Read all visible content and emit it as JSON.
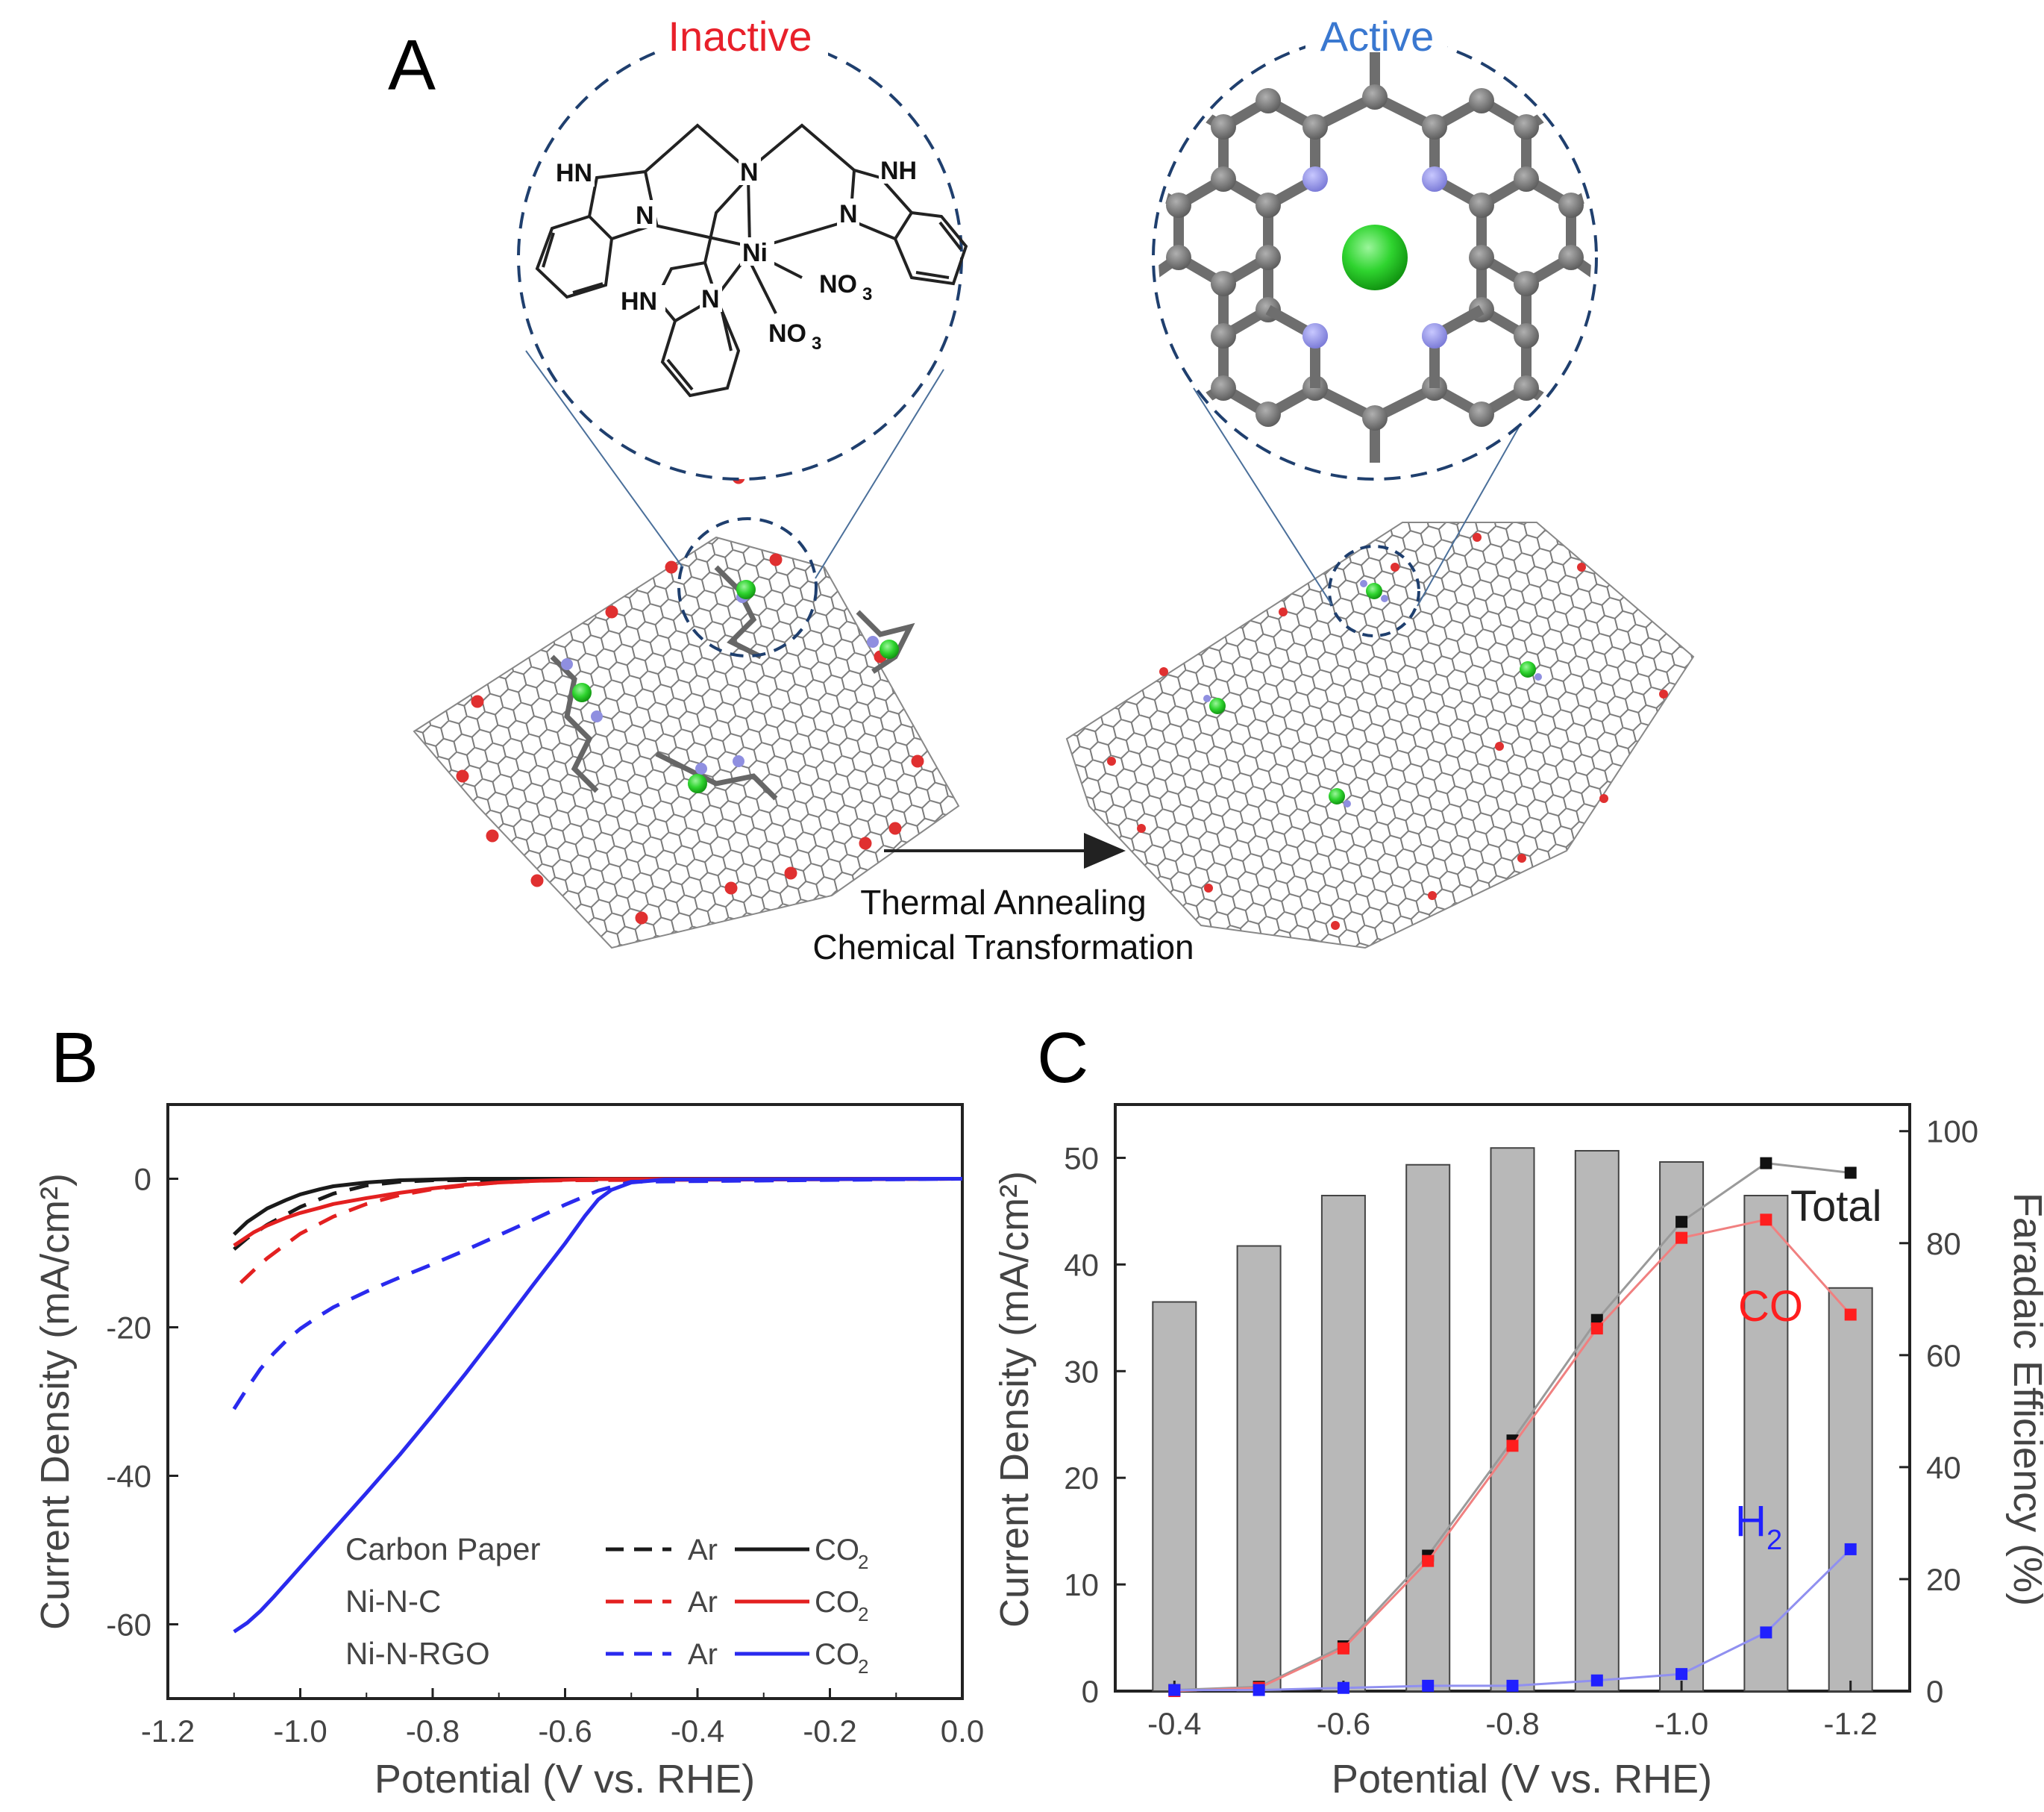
{
  "panel_a": {
    "letter": "A",
    "inactive_label": "Inactive",
    "active_label": "Active",
    "arrow_line1": "Thermal Annealing",
    "arrow_line2": "Chemical Transformation",
    "molecule_labels": {
      "hn_left": "HN",
      "n_left": "N",
      "n_top": "N",
      "nh_right": "NH",
      "n_right": "N",
      "ni": "Ni",
      "no3_a": "NO",
      "no3_b": "NO",
      "subscript3": "3",
      "hn_bottom": "HN",
      "n_bottom": "N"
    },
    "colors": {
      "inactive": "#e8202a",
      "active": "#3a78d0",
      "nickel": "#2fd42f",
      "nitrogen": "#8f8fe0",
      "carbon": "#777777"
    }
  },
  "chart_data": [
    {
      "panel": "B",
      "type": "line",
      "title": "",
      "xlabel": "Potential (V vs. RHE)",
      "ylabel": "Current Density (mA/cm²)",
      "xlim": [
        -1.2,
        0.0
      ],
      "ylim": [
        -70,
        10
      ],
      "xticks": [
        -1.2,
        -1.0,
        -0.8,
        -0.6,
        -0.4,
        -0.2,
        0.0
      ],
      "xtick_labels": [
        "-1.2",
        "-1.0",
        "-0.8",
        "-0.6",
        "-0.4",
        "-0.2",
        "0.0"
      ],
      "yticks": [
        0,
        -20,
        -40,
        -60
      ],
      "ytick_labels": [
        "0",
        "-20",
        "-40",
        "-60"
      ],
      "legend": {
        "position": "bottom-left",
        "rows": [
          {
            "label": "Carbon Paper",
            "ar": "Ar",
            "co2": "CO",
            "sub": "2",
            "color": "#1a1a1a"
          },
          {
            "label": "Ni-N-C",
            "ar": "Ar",
            "co2": "CO",
            "sub": "2",
            "color": "#e32020"
          },
          {
            "label": "Ni-N-RGO",
            "ar": "Ar",
            "co2": "CO",
            "sub": "2",
            "color": "#2a2aee"
          }
        ]
      },
      "series": [
        {
          "name": "Carbon Paper Ar",
          "color": "#1a1a1a",
          "dash": true,
          "x": [
            -1.1,
            -1.08,
            -1.05,
            -1.0,
            -0.95,
            -0.9,
            -0.85,
            -0.8,
            0.0
          ],
          "y": [
            -9.5,
            -8.0,
            -6.2,
            -3.8,
            -2.0,
            -0.9,
            -0.4,
            -0.2,
            0
          ]
        },
        {
          "name": "Carbon Paper CO2",
          "color": "#1a1a1a",
          "dash": false,
          "x": [
            -1.1,
            -1.08,
            -1.05,
            -1.02,
            -1.0,
            -0.97,
            -0.95,
            -0.9,
            -0.85,
            -0.8,
            -0.75,
            0.0
          ],
          "y": [
            -7.5,
            -5.8,
            -4.0,
            -2.8,
            -2.1,
            -1.4,
            -1.0,
            -0.5,
            -0.2,
            -0.1,
            0,
            0
          ]
        },
        {
          "name": "Ni-N-C Ar",
          "color": "#e32020",
          "dash": true,
          "x": [
            -1.09,
            -1.07,
            -1.05,
            -1.02,
            -1.0,
            -0.95,
            -0.9,
            -0.85,
            -0.8,
            -0.75,
            -0.7,
            -0.65,
            -0.6,
            0.0
          ],
          "y": [
            -14,
            -12.3,
            -10.7,
            -8.7,
            -7.4,
            -5.1,
            -3.4,
            -2.2,
            -1.4,
            -0.9,
            -0.5,
            -0.3,
            -0.2,
            0
          ]
        },
        {
          "name": "Ni-N-C CO2",
          "color": "#e32020",
          "dash": false,
          "x": [
            -1.1,
            -1.07,
            -1.05,
            -1.02,
            -1.0,
            -0.97,
            -0.95,
            -0.9,
            -0.85,
            -0.8,
            -0.75,
            -0.7,
            -0.65,
            -0.6,
            -0.55,
            0.0
          ],
          "y": [
            -9.0,
            -7.2,
            -6.3,
            -5.2,
            -4.6,
            -3.9,
            -3.4,
            -2.6,
            -1.9,
            -1.3,
            -0.8,
            -0.5,
            -0.3,
            -0.15,
            -0.05,
            0
          ]
        },
        {
          "name": "Ni-N-RGO Ar",
          "color": "#2a2aee",
          "dash": true,
          "x": [
            -1.1,
            -1.08,
            -1.06,
            -1.04,
            -1.02,
            -1.0,
            -0.97,
            -0.95,
            -0.9,
            -0.85,
            -0.8,
            -0.75,
            -0.7,
            -0.65,
            -0.6,
            -0.55,
            -0.5,
            0.0
          ],
          "y": [
            -31,
            -28.2,
            -25.6,
            -23.5,
            -21.7,
            -20.2,
            -18.4,
            -17.3,
            -15.2,
            -13.3,
            -11.5,
            -9.6,
            -7.6,
            -5.6,
            -3.5,
            -1.6,
            -0.4,
            0
          ]
        },
        {
          "name": "Ni-N-RGO CO2",
          "color": "#2a2aee",
          "dash": false,
          "x": [
            -1.1,
            -1.08,
            -1.06,
            -1.04,
            -1.02,
            -1.0,
            -0.95,
            -0.9,
            -0.85,
            -0.8,
            -0.75,
            -0.7,
            -0.65,
            -0.6,
            -0.57,
            -0.55,
            -0.53,
            -0.5,
            -0.45,
            0.0
          ],
          "y": [
            -61,
            -59.8,
            -58.2,
            -56.3,
            -54.3,
            -52.3,
            -47.3,
            -42.3,
            -37.2,
            -31.8,
            -26.2,
            -20.4,
            -14.5,
            -8.7,
            -5.0,
            -2.8,
            -1.5,
            -0.5,
            -0.1,
            0
          ]
        }
      ]
    },
    {
      "panel": "C",
      "type": "bar",
      "title": "",
      "xlabel": "Potential (V vs. RHE)",
      "ylabel": "Current Density (mA/cm²)",
      "y2label": "Faradaic Efficiency (%)",
      "x": [
        -0.4,
        -0.5,
        -0.6,
        -0.7,
        -0.8,
        -0.9,
        -1.0,
        -1.1,
        -1.2
      ],
      "xtick_labels": [
        "-0.4",
        "-0.6",
        "-0.8",
        "-1.0",
        "-1.2"
      ],
      "xtick_values": [
        -0.4,
        -0.6,
        -0.8,
        -1.0,
        -1.2
      ],
      "ylim": [
        0,
        55
      ],
      "yticks": [
        0,
        10,
        20,
        30,
        40,
        50
      ],
      "ytick_labels": [
        "0",
        "10",
        "20",
        "30",
        "40",
        "50"
      ],
      "y2lim": [
        0,
        104.76
      ],
      "y2ticks": [
        0,
        20,
        40,
        60,
        80,
        100
      ],
      "y2tick_labels": [
        "0",
        "20",
        "40",
        "60",
        "80",
        "100"
      ],
      "bars": {
        "name": "Faradaic Efficiency (CO)",
        "axis": "right",
        "color": "#b8b8b8",
        "values": [
          69.5,
          79.5,
          88.5,
          94.0,
          97.0,
          96.5,
          94.5,
          88.5,
          72.0
        ]
      },
      "series": [
        {
          "name": "Total",
          "label": "Total",
          "axis": "left",
          "color": "#111111",
          "line_color": "#9a9a9a",
          "values": [
            0.1,
            0.4,
            4.2,
            12.7,
            23.5,
            34.8,
            44.0,
            49.5,
            48.6
          ]
        },
        {
          "name": "CO",
          "label": "CO",
          "axis": "left",
          "color": "#ff1e1e",
          "line_color": "#f08080",
          "values": [
            0.0,
            0.3,
            4.0,
            12.2,
            23.0,
            34.0,
            42.5,
            44.2,
            35.3
          ]
        },
        {
          "name": "H2",
          "label": "H",
          "sub": "2",
          "axis": "left",
          "color": "#2020ff",
          "line_color": "#9090f0",
          "values": [
            0.1,
            0.1,
            0.3,
            0.5,
            0.5,
            1.0,
            1.6,
            5.5,
            13.3
          ]
        }
      ]
    }
  ]
}
